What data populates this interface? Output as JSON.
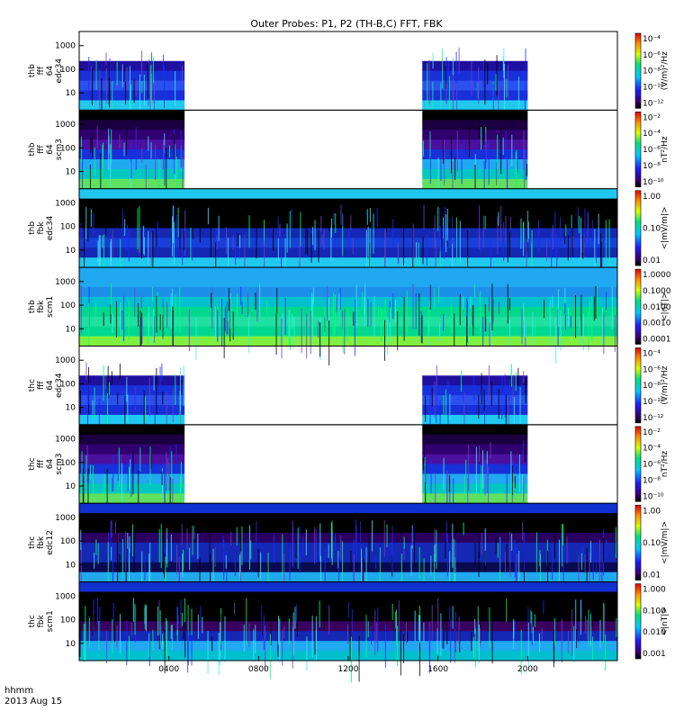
{
  "title": "Outer Probes: P1, P2 (TH-B,C) FFT, FBK",
  "footer": {
    "line1": "hhmm",
    "line2": "2013 Aug 15"
  },
  "x_ticks": [
    "0400",
    "0800",
    "1200",
    "1600",
    "2000"
  ],
  "chart_data": {
    "type": "heatmap",
    "x_range_hours": [
      0,
      24
    ],
    "x_tick_values_hours": [
      4,
      8,
      12,
      16,
      20
    ],
    "panels": [
      {
        "id": "p1",
        "ylabel": [
          "thb",
          "fff",
          "64",
          "edc34"
        ],
        "yticks": [
          "1000",
          "100",
          "10"
        ],
        "cb_ticks": [
          "10⁻⁴",
          "10⁻⁶",
          "10⁻⁸",
          "10⁻¹⁰",
          "10⁻¹²"
        ],
        "cb_label": "(V/m)²/Hz",
        "data_hours": [
          [
            0,
            4.7
          ],
          [
            15.3,
            20
          ]
        ]
      },
      {
        "id": "p2",
        "ylabel": [
          "thb",
          "fff",
          "64",
          "scm3"
        ],
        "yticks": [
          "1000",
          "100",
          "10"
        ],
        "cb_ticks": [
          "10⁻²",
          "10⁻⁴",
          "10⁻⁶",
          "10⁻⁸",
          "10⁻¹⁰"
        ],
        "cb_label": "nT²/Hz",
        "data_hours": [
          [
            0,
            4.7
          ],
          [
            15.3,
            20
          ]
        ]
      },
      {
        "id": "p3",
        "ylabel": [
          "thb",
          "fbk",
          "edc34"
        ],
        "yticks": [
          "1000",
          "100",
          "10"
        ],
        "cb_ticks": [
          "1.00",
          "0.10",
          "0.01"
        ],
        "cb_label": "<|mV/m|>",
        "data_hours": [
          [
            0,
            24
          ]
        ]
      },
      {
        "id": "p4",
        "ylabel": [
          "thb",
          "fbk",
          "scm1"
        ],
        "yticks": [
          "1000",
          "100",
          "10"
        ],
        "cb_ticks": [
          "1.0000",
          "0.1000",
          "0.0100",
          "0.0010",
          "0.0001"
        ],
        "cb_label": "<|nT|>",
        "data_hours": [
          [
            0,
            24
          ]
        ]
      },
      {
        "id": "p5",
        "ylabel": [
          "thc",
          "fff",
          "64",
          "edc34"
        ],
        "yticks": [
          "1000",
          "100",
          "10"
        ],
        "cb_ticks": [
          "10⁻⁴",
          "10⁻⁶",
          "10⁻⁸",
          "10⁻¹⁰",
          "10⁻¹²"
        ],
        "cb_label": "(V/m)²/Hz",
        "data_hours": [
          [
            0,
            4.7
          ],
          [
            15.3,
            20
          ]
        ]
      },
      {
        "id": "p6",
        "ylabel": [
          "thc",
          "fff",
          "64",
          "scm3"
        ],
        "yticks": [
          "1000",
          "100",
          "10"
        ],
        "cb_ticks": [
          "10⁻²",
          "10⁻⁴",
          "10⁻⁶",
          "10⁻⁸",
          "10⁻¹⁰"
        ],
        "cb_label": "nT²/Hz",
        "data_hours": [
          [
            0,
            4.7
          ],
          [
            15.3,
            20
          ]
        ]
      },
      {
        "id": "p7",
        "ylabel": [
          "thc",
          "fbk",
          "edc12"
        ],
        "yticks": [
          "1000",
          "100",
          "10"
        ],
        "cb_ticks": [
          "1.00",
          "0.10",
          "0.01"
        ],
        "cb_label": "<|mV/m|>",
        "data_hours": [
          [
            0,
            24
          ]
        ]
      },
      {
        "id": "p8",
        "ylabel": [
          "thc",
          "fbk",
          "scm1"
        ],
        "yticks": [
          "1000",
          "100",
          "10"
        ],
        "cb_ticks": [
          "1.000",
          "0.100",
          "0.010",
          "0.001"
        ],
        "cb_label": "<|nT|>",
        "data_hours": [
          [
            0,
            24
          ]
        ]
      }
    ]
  },
  "colors": {
    "axis": "#000000",
    "background": "#ffffff"
  }
}
